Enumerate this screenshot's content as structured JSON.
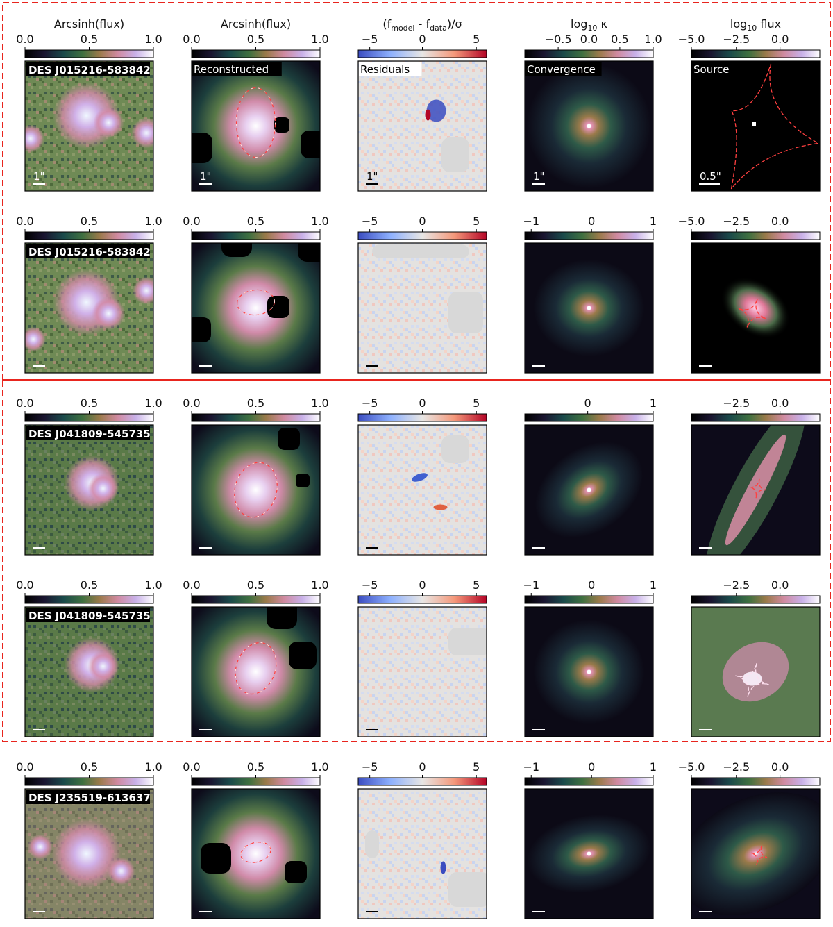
{
  "columns": [
    {
      "title": "Arcsinh(flux)",
      "cmap": "cubehelix"
    },
    {
      "title": "Arcsinh(flux)",
      "cmap": "cubehelix"
    },
    {
      "title": "(f<sub>model</sub> - f<sub>data</sub>)/σ",
      "title_main": "(f",
      "title_sub1": "model",
      "title_mid": " - f",
      "title_sub2": "data",
      "title_end": ")/σ",
      "cmap": "coolwarm"
    },
    {
      "title": "log₁₀ κ",
      "title_main": "log",
      "title_sub": "10",
      "title_end": " κ",
      "cmap": "cubehelix"
    },
    {
      "title": "log₁₀ flux",
      "title_main": "log",
      "title_sub": "10",
      "title_end": " flux",
      "cmap": "cubehelix"
    }
  ],
  "panel_labels": {
    "reconstructed": "Reconstructed",
    "residuals": "Residuals",
    "convergence": "Convergence",
    "source": "Source"
  },
  "rows": [
    {
      "name": "DES J015216-583842",
      "ticks": [
        [
          "0.0",
          "0.5",
          "1.0"
        ],
        [
          "0.0",
          "0.5",
          "1.0"
        ],
        [
          "−5",
          "0",
          "5"
        ],
        [
          "−0.5",
          "0.0",
          "0.5",
          "1.0"
        ],
        [
          "−5.0",
          "−2.5",
          "0.0"
        ]
      ],
      "scalebars": [
        "1\"",
        "1\"",
        "1\"",
        "1\"",
        "0.5\""
      ],
      "labels": true
    },
    {
      "name": "DES J015216-583842",
      "ticks": [
        [
          "0.0",
          "0.5",
          "1.0"
        ],
        [
          "0.0",
          "0.5",
          "1.0"
        ],
        [
          "−5",
          "0",
          "5"
        ],
        [
          "−1",
          "0",
          "1"
        ],
        [
          "−5.0",
          "−2.5",
          "0.0"
        ]
      ],
      "scalebars": [
        "",
        "",
        "",
        "",
        ""
      ],
      "labels": false
    },
    {
      "name": "DES J041809-545735",
      "ticks": [
        [
          "0.0",
          "0.5",
          "1.0"
        ],
        [
          "0.0",
          "0.5",
          "1.0"
        ],
        [
          "−5",
          "0",
          "5"
        ],
        [
          "0",
          "1"
        ],
        [
          "−2.5",
          "0.0"
        ]
      ],
      "scalebars": [
        "",
        "",
        "",
        "",
        ""
      ],
      "labels": false
    },
    {
      "name": "DES J041809-545735",
      "ticks": [
        [
          "0.0",
          "0.5",
          "1.0"
        ],
        [
          "0.0",
          "0.5",
          "1.0"
        ],
        [
          "−5",
          "0",
          "5"
        ],
        [
          "−1",
          "0",
          "1"
        ],
        [
          "−2.5",
          "0.0"
        ]
      ],
      "scalebars": [
        "",
        "",
        "",
        "",
        ""
      ],
      "labels": false
    },
    {
      "name": "DES J235519-613637",
      "ticks": [
        [
          "0.0",
          "0.5",
          "1.0"
        ],
        [
          "0.0",
          "0.5",
          "1.0"
        ],
        [
          "−5",
          "0",
          "5"
        ],
        [
          "−1",
          "0",
          "1"
        ],
        [
          "−5.0",
          "−2.5",
          "0.0"
        ]
      ],
      "scalebars": [
        "",
        "",
        "",
        "",
        ""
      ],
      "labels": false
    }
  ],
  "colors": {
    "frame": "#e8251e",
    "caustic": "#ff3030"
  }
}
